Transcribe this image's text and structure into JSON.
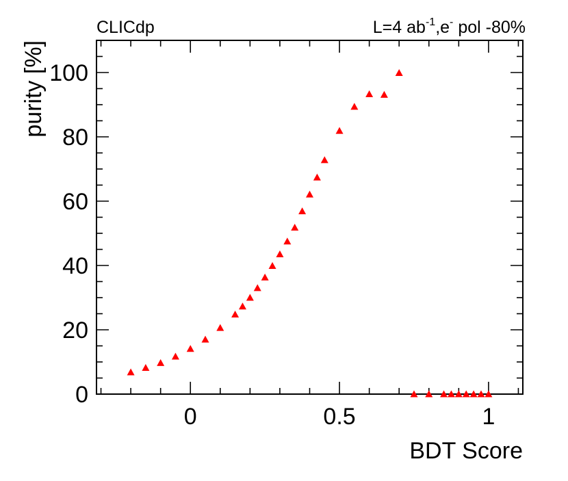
{
  "chart_data": {
    "type": "scatter",
    "title_left": "CLICdp",
    "title_right": {
      "prefix": "L=4 ab",
      "sup1": "-1",
      "mid": ",e",
      "sup2": "-",
      "suffix": " pol -80%"
    },
    "xlabel": "BDT Score",
    "ylabel": "purity [%]",
    "xlim": [
      -0.315,
      1.115
    ],
    "ylim": [
      0,
      110
    ],
    "xticks": [
      0,
      0.5,
      1
    ],
    "xtick_labels": [
      "0",
      "0.5",
      "1"
    ],
    "yticks": [
      0,
      20,
      40,
      60,
      80,
      100
    ],
    "ytick_labels": [
      "0",
      "20",
      "40",
      "60",
      "80",
      "100"
    ],
    "grid": false,
    "marker": "triangle",
    "color": "#ff0000",
    "series": [
      {
        "x": [
          -0.2,
          -0.15,
          -0.1,
          -0.05,
          0.0,
          0.05,
          0.1,
          0.15,
          0.175,
          0.2,
          0.225,
          0.25,
          0.275,
          0.3,
          0.325,
          0.35,
          0.375,
          0.4,
          0.425,
          0.45,
          0.5,
          0.55,
          0.6,
          0.65,
          0.7,
          0.75,
          0.8,
          0.85,
          0.875,
          0.9,
          0.925,
          0.95,
          0.975,
          1.0
        ],
        "y": [
          6.8,
          8.2,
          9.7,
          11.7,
          14.1,
          17.0,
          20.6,
          24.8,
          27.3,
          30.0,
          33.0,
          36.3,
          39.9,
          43.5,
          47.5,
          51.8,
          56.9,
          62.1,
          67.4,
          72.8,
          81.9,
          89.4,
          93.3,
          93.1,
          99.9,
          0,
          0,
          0,
          0,
          0,
          0,
          0,
          0,
          0
        ]
      }
    ]
  }
}
